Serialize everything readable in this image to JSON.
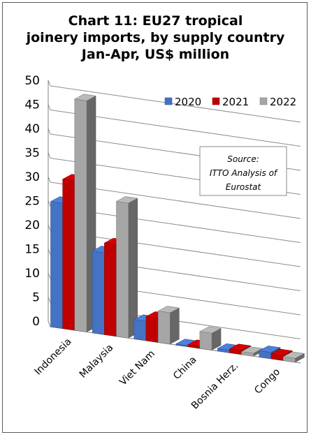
{
  "chart_data": {
    "type": "bar",
    "title_lines": [
      "Chart 11: EU27 tropical",
      "joinery imports, by supply country",
      "Jan-Apr, US$ million"
    ],
    "categories": [
      "Indonesia",
      "Malaysia",
      "Viet Nam",
      "China",
      "Bosnia Herz.",
      "Congo"
    ],
    "series": [
      {
        "name": "2020",
        "values": [
          26,
          17,
          4,
          0.2,
          0.5,
          1.3
        ]
      },
      {
        "name": "2021",
        "values": [
          31,
          19,
          5,
          0.4,
          0.8,
          1.0
        ]
      },
      {
        "name": "2022",
        "values": [
          48,
          28,
          6.5,
          3.5,
          0.6,
          0.8
        ]
      }
    ],
    "yticks": [
      "0",
      "5",
      "10",
      "15",
      "20",
      "25",
      "30",
      "35",
      "40",
      "45",
      "50"
    ],
    "ylim": [
      0,
      50
    ],
    "grid": true,
    "legend_position": "top-right",
    "colors": {
      "2020": "#4472c4",
      "2021": "#c00000",
      "2022": "#a6a6a6"
    },
    "annotation": [
      "Source:",
      "ITTO Analysis of",
      "Eurostat"
    ]
  }
}
